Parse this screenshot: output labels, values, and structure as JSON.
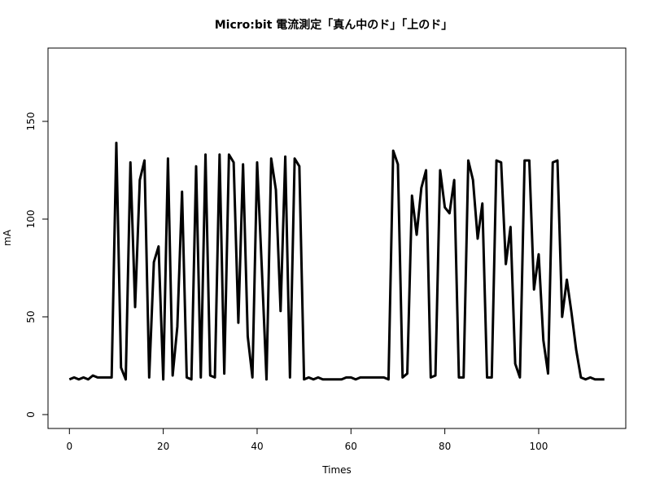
{
  "chart_data": {
    "type": "line",
    "title": "Micro:bit 電流測定「真ん中のド」「上のド」",
    "x_label": "Times",
    "y_label": "mA",
    "x": [
      0,
      1,
      2,
      3,
      4,
      5,
      6,
      7,
      8,
      9,
      10,
      11,
      12,
      13,
      14,
      15,
      16,
      17,
      18,
      19,
      20,
      21,
      22,
      23,
      24,
      25,
      26,
      27,
      28,
      29,
      30,
      31,
      32,
      33,
      34,
      35,
      36,
      37,
      38,
      39,
      40,
      41,
      42,
      43,
      44,
      45,
      46,
      47,
      48,
      49,
      50,
      51,
      52,
      53,
      54,
      55,
      56,
      57,
      58,
      59,
      60,
      61,
      62,
      63,
      64,
      65,
      66,
      67,
      68,
      69,
      70,
      71,
      72,
      73,
      74,
      75,
      76,
      77,
      78,
      79,
      80,
      81,
      82,
      83,
      84,
      85,
      86,
      87,
      88,
      89,
      90,
      91,
      92,
      93,
      94,
      95,
      96,
      97,
      98,
      99,
      100,
      101,
      102,
      103,
      104,
      105,
      106,
      107,
      108,
      109,
      110,
      111,
      112,
      113,
      114
    ],
    "series": [
      {
        "name": "mA",
        "color": "#000000",
        "values": [
          18,
          19,
          18,
          19,
          18,
          20,
          19,
          19,
          19,
          19,
          139,
          24,
          18,
          129,
          55,
          120,
          130,
          19,
          78,
          86,
          18,
          131,
          20,
          45,
          114,
          19,
          18,
          127,
          19,
          133,
          20,
          19,
          133,
          21,
          133,
          129,
          47,
          128,
          40,
          19,
          129,
          75,
          18,
          131,
          115,
          53,
          132,
          19,
          131,
          127,
          18,
          19,
          18,
          19,
          18,
          18,
          18,
          18,
          18,
          19,
          19,
          18,
          19,
          19,
          19,
          19,
          19,
          19,
          18,
          135,
          128,
          19,
          21,
          112,
          92,
          116,
          125,
          19,
          20,
          125,
          106,
          103,
          120,
          19,
          19,
          130,
          120,
          90,
          108,
          19,
          19,
          130,
          129,
          77,
          96,
          26,
          19,
          130,
          130,
          64,
          82,
          38,
          21,
          129,
          130,
          50,
          69,
          52,
          33,
          19,
          18,
          19,
          18,
          18,
          18
        ]
      }
    ],
    "xlim": [
      -4.56,
      118.56
    ],
    "ylim": [
      -7.1,
      187.5
    ],
    "xticks": [
      0,
      20,
      40,
      60,
      80,
      100
    ],
    "yticks": [
      0,
      50,
      100,
      150
    ]
  }
}
